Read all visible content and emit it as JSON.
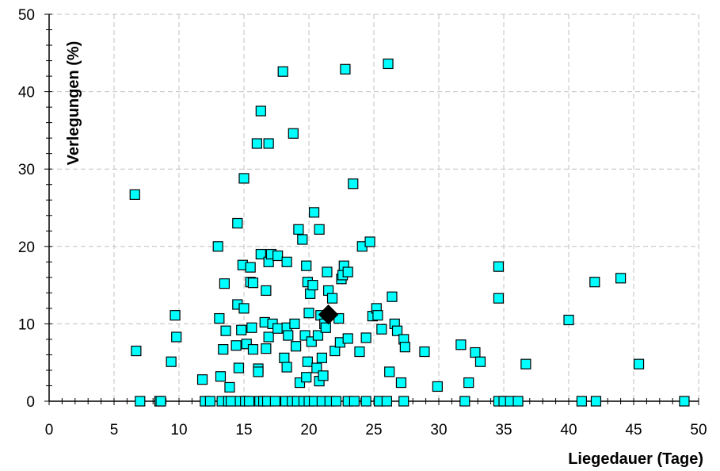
{
  "chart_data": {
    "type": "scatter",
    "xlabel": "Liegedauer (Tage)",
    "ylabel": "Verlegungen (%)",
    "xlim": [
      0,
      50
    ],
    "ylim": [
      0,
      50
    ],
    "xticks": [
      "0",
      "5",
      "10",
      "15",
      "20",
      "25",
      "30",
      "35",
      "40",
      "45",
      "50"
    ],
    "yticks": [
      "0",
      "10",
      "20",
      "30",
      "40",
      "50"
    ],
    "grid": true,
    "colors": {
      "point_fill": "#00FFFF",
      "point_stroke": "#000000",
      "highlight": "#000000",
      "grid": "#C0C0C0"
    },
    "series": [
      {
        "marker": "square",
        "points": [
          [
            6.6,
            26.7
          ],
          [
            6.7,
            6.5
          ],
          [
            7.0,
            0
          ],
          [
            8.5,
            0
          ],
          [
            8.6,
            0
          ],
          [
            9.4,
            5.1
          ],
          [
            9.7,
            11.1
          ],
          [
            9.8,
            8.3
          ],
          [
            11.8,
            2.8
          ],
          [
            12.0,
            0
          ],
          [
            12.4,
            0
          ],
          [
            13.0,
            20.0
          ],
          [
            13.1,
            10.7
          ],
          [
            13.2,
            3.2
          ],
          [
            13.3,
            0
          ],
          [
            13.4,
            6.7
          ],
          [
            13.5,
            15.2
          ],
          [
            13.6,
            9.1
          ],
          [
            13.8,
            0
          ],
          [
            13.9,
            1.8
          ],
          [
            14.0,
            0
          ],
          [
            14.4,
            7.2
          ],
          [
            14.5,
            23.0
          ],
          [
            14.5,
            12.5
          ],
          [
            14.6,
            4.3
          ],
          [
            14.7,
            0
          ],
          [
            14.8,
            9.2
          ],
          [
            14.9,
            17.6
          ],
          [
            15.0,
            28.8
          ],
          [
            15.0,
            12.0
          ],
          [
            15.1,
            0
          ],
          [
            15.2,
            7.4
          ],
          [
            15.4,
            0
          ],
          [
            15.5,
            15.4
          ],
          [
            15.5,
            17.3
          ],
          [
            15.6,
            9.5
          ],
          [
            15.7,
            15.3
          ],
          [
            15.7,
            6.7
          ],
          [
            16.0,
            33.3
          ],
          [
            16.1,
            4.2
          ],
          [
            16.1,
            3.8
          ],
          [
            16.2,
            0
          ],
          [
            16.3,
            37.5
          ],
          [
            16.3,
            19.0
          ],
          [
            16.5,
            0
          ],
          [
            16.6,
            10.2
          ],
          [
            16.7,
            14.3
          ],
          [
            16.7,
            6.8
          ],
          [
            16.8,
            0
          ],
          [
            16.9,
            33.3
          ],
          [
            16.9,
            18.0
          ],
          [
            16.9,
            8.3
          ],
          [
            17.1,
            19.0
          ],
          [
            17.2,
            10.0
          ],
          [
            17.4,
            0
          ],
          [
            17.6,
            18.8
          ],
          [
            17.6,
            9.4
          ],
          [
            18.0,
            42.6
          ],
          [
            18.1,
            5.6
          ],
          [
            18.2,
            0
          ],
          [
            18.3,
            18.0
          ],
          [
            18.3,
            9.5
          ],
          [
            18.3,
            4.4
          ],
          [
            18.4,
            8.5
          ],
          [
            18.7,
            0
          ],
          [
            18.8,
            34.6
          ],
          [
            18.9,
            10.0
          ],
          [
            19.0,
            7.1
          ],
          [
            19.1,
            0
          ],
          [
            19.2,
            22.2
          ],
          [
            19.3,
            2.4
          ],
          [
            19.5,
            20.9
          ],
          [
            19.6,
            0
          ],
          [
            19.7,
            8.5
          ],
          [
            19.8,
            17.5
          ],
          [
            19.8,
            3.1
          ],
          [
            19.9,
            15.4
          ],
          [
            19.9,
            5.1
          ],
          [
            20.0,
            11.4
          ],
          [
            20.0,
            0
          ],
          [
            20.1,
            13.9
          ],
          [
            20.2,
            7.7
          ],
          [
            20.3,
            15.0
          ],
          [
            20.4,
            24.4
          ],
          [
            20.4,
            0
          ],
          [
            20.6,
            4.3
          ],
          [
            20.7,
            8.5
          ],
          [
            20.8,
            22.2
          ],
          [
            20.8,
            2.6
          ],
          [
            20.9,
            11.1
          ],
          [
            21.0,
            5.6
          ],
          [
            21.0,
            0
          ],
          [
            21.1,
            3.3
          ],
          [
            21.2,
            10.0
          ],
          [
            21.3,
            9.5
          ],
          [
            21.4,
            16.7
          ],
          [
            21.5,
            14.3
          ],
          [
            21.6,
            0
          ],
          [
            21.8,
            13.3
          ],
          [
            22.0,
            6.5
          ],
          [
            22.1,
            0
          ],
          [
            22.3,
            10.7
          ],
          [
            22.4,
            7.6
          ],
          [
            22.5,
            15.8
          ],
          [
            22.6,
            16.3
          ],
          [
            22.7,
            17.5
          ],
          [
            22.8,
            42.9
          ],
          [
            23.0,
            8.1
          ],
          [
            23.0,
            16.7
          ],
          [
            23.0,
            0
          ],
          [
            23.4,
            28.1
          ],
          [
            23.5,
            0
          ],
          [
            23.9,
            6.4
          ],
          [
            24.1,
            20.0
          ],
          [
            24.4,
            8.2
          ],
          [
            24.4,
            0
          ],
          [
            24.7,
            20.6
          ],
          [
            24.9,
            11.0
          ],
          [
            25.2,
            12.0
          ],
          [
            25.3,
            11.1
          ],
          [
            25.4,
            0
          ],
          [
            25.6,
            9.3
          ],
          [
            26.0,
            0
          ],
          [
            26.1,
            43.6
          ],
          [
            26.2,
            3.8
          ],
          [
            26.4,
            13.5
          ],
          [
            26.6,
            10.0
          ],
          [
            26.8,
            9.1
          ],
          [
            27.1,
            2.4
          ],
          [
            27.3,
            0
          ],
          [
            27.3,
            8.0
          ],
          [
            27.4,
            7.0
          ],
          [
            28.9,
            6.4
          ],
          [
            29.9,
            1.9
          ],
          [
            31.7,
            7.3
          ],
          [
            32.0,
            0
          ],
          [
            32.3,
            2.4
          ],
          [
            32.8,
            6.3
          ],
          [
            33.2,
            5.1
          ],
          [
            34.6,
            17.4
          ],
          [
            34.6,
            13.3
          ],
          [
            34.6,
            0
          ],
          [
            35.0,
            0
          ],
          [
            35.5,
            0
          ],
          [
            36.1,
            0
          ],
          [
            36.7,
            4.8
          ],
          [
            40.0,
            10.5
          ],
          [
            41.0,
            0
          ],
          [
            42.0,
            15.4
          ],
          [
            42.1,
            0
          ],
          [
            44.0,
            15.9
          ],
          [
            45.4,
            4.8
          ],
          [
            48.9,
            0
          ]
        ]
      },
      {
        "marker": "diamond",
        "points": [
          [
            21.5,
            11.2
          ]
        ]
      }
    ]
  }
}
